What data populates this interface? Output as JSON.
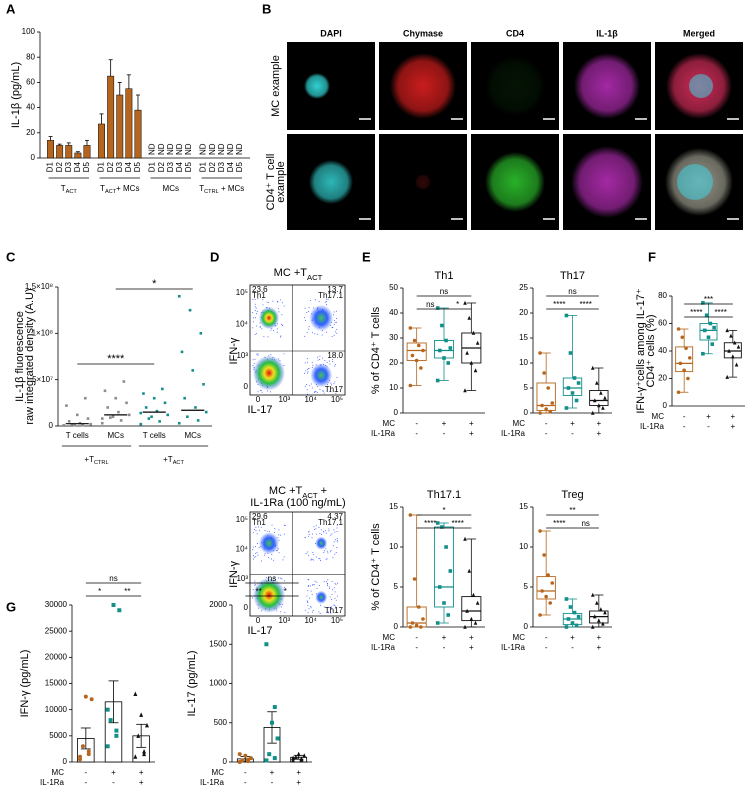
{
  "panel_letters": [
    "A",
    "B",
    "C",
    "D",
    "E",
    "F",
    "G"
  ],
  "microscopy": {
    "columns": [
      "DAPI",
      "Chymase",
      "CD4",
      "IL-1β",
      "Merged"
    ],
    "rows": [
      [
        "MC example"
      ],
      [
        "CD4⁺ T cell",
        "example"
      ]
    ],
    "scale_bar": "3 µm"
  },
  "flow": [
    {
      "title": {
        "text": "MC +T",
        "sub": "ACT"
      },
      "xlabel": "IL-17",
      "ylabel": "IFN-γ",
      "quadrants": [
        {
          "value": "23.6",
          "name": "Th1"
        },
        {
          "value": "13.7",
          "name": "Th17.1"
        },
        {
          "value": "18.0",
          "name": "Th17"
        }
      ],
      "yticks": [
        "10⁵",
        "10⁴",
        "10³",
        "0"
      ],
      "xticks": [
        "0",
        "10³",
        "10⁴",
        "10⁵"
      ]
    },
    {
      "title": {
        "text": "MC +T",
        "sub": "ACT",
        "after": " +"
      },
      "subtitle": "IL-1Ra (100 ng/mL)",
      "xlabel": "IL-17",
      "ylabel": "IFN-γ",
      "quadrants": [
        {
          "value": "29.6",
          "name": "Th1"
        },
        {
          "value": "4.37",
          "name": "Th17.1"
        },
        {
          "name": "Th17"
        }
      ],
      "yticks": [
        "10⁵",
        "10⁴",
        "10³",
        "0"
      ],
      "xticks": [
        "0",
        "10³",
        "10⁴",
        "10⁵"
      ]
    }
  ],
  "chart_data": [
    {
      "type": "bar",
      "ylabel": [
        "IL-1β (pg/mL)"
      ],
      "color": "#b5651d",
      "categories": [
        "D1",
        "D2",
        "D3",
        "D4",
        "D5",
        "D1",
        "D2",
        "D3",
        "D4",
        "D5",
        "D1",
        "D2",
        "D3",
        "D4",
        "D5",
        "D1",
        "D2",
        "D3",
        "D4",
        "D5"
      ],
      "values": [
        14,
        10,
        10,
        4,
        10,
        27,
        65,
        50,
        55,
        38,
        null,
        null,
        null,
        null,
        null,
        null,
        null,
        null,
        null,
        null
      ],
      "errors": [
        3,
        1,
        2,
        1,
        4,
        8,
        13,
        10,
        11,
        12,
        null,
        null,
        null,
        null,
        null,
        null,
        null,
        null,
        null,
        null
      ],
      "value_labels": [
        null,
        null,
        null,
        null,
        null,
        null,
        null,
        null,
        null,
        null,
        "ND",
        "ND",
        "ND",
        "ND",
        "ND",
        "ND",
        "ND",
        "ND",
        "ND",
        "ND"
      ],
      "groups": [
        {
          "text": "T",
          "sub": "ACT"
        },
        {
          "text": "T",
          "sub": "ACT",
          "after": "+ MCs"
        },
        {
          "text": "MCs"
        },
        {
          "text": "T",
          "sub": "CTRL",
          "after": " + MCs"
        }
      ],
      "ylim": [
        0,
        100
      ],
      "yticks": [
        0,
        20,
        40,
        60,
        80,
        100
      ]
    },
    {
      "type": "dot",
      "ylabel": [
        "IL-1β fluorescence",
        "raw integrated density (A.U)"
      ],
      "categories": [
        "T cells",
        "MCs",
        "T cells",
        "MCs"
      ],
      "colors": [
        "#8c8c8c",
        "#8c8c8c",
        "#138f8a",
        "#138f8a"
      ],
      "points": [
        [
          500000,
          1000000,
          1500000,
          2000000,
          3000000,
          5000000,
          8000000,
          12000000,
          22000000,
          30000000,
          1000000,
          700000
        ],
        [
          3000000,
          6000000,
          9000000,
          12000000,
          15000000,
          20000000,
          25000000,
          30000000,
          38000000,
          48000000,
          10000000,
          8000000
        ],
        [
          2000000,
          5000000,
          8000000,
          12000000,
          16000000,
          20000000,
          25000000,
          30000000,
          35000000,
          40000000,
          10000000,
          14000000
        ],
        [
          3000000,
          6000000,
          10000000,
          15000000,
          20000000,
          30000000,
          45000000,
          60000000,
          80000000,
          100000000,
          125000000,
          140000000
        ]
      ],
      "means": [
        2500000,
        12000000,
        15000000,
        17000000
      ],
      "groups": [
        {
          "text": "+T",
          "sub": "CTRL"
        },
        {
          "text": "+T",
          "sub": "ACT"
        }
      ],
      "significance": [
        {
          "from": 0,
          "to": 2,
          "label": "****"
        },
        {
          "from": 1,
          "to": 3,
          "label": "*"
        }
      ],
      "ylim": [
        0,
        150000000
      ],
      "yticks": [
        0,
        {
          "value": 50000000,
          "label": "5×10⁷"
        },
        {
          "value": 100000000,
          "label": "1×10⁸"
        },
        {
          "value": 150000000,
          "label": "1.5×10⁸"
        }
      ]
    },
    {
      "type": "box",
      "title": "Th1",
      "ylabel": [
        "% of CD4⁺ T cells"
      ],
      "ylim": [
        0,
        50
      ],
      "yticks": [
        0,
        10,
        20,
        30,
        40,
        50
      ],
      "conditions": [
        {
          "name": "MC",
          "values": [
            "-",
            "+",
            "+"
          ]
        },
        {
          "name": "IL-1Ra",
          "values": [
            "-",
            "-",
            "+"
          ]
        }
      ],
      "groups": [
        {
          "color": "#b5651d",
          "marker": "circle",
          "min": 11,
          "q1": 21,
          "median": 25,
          "q3": 28,
          "max": 34,
          "points": [
            11,
            18,
            21,
            23,
            25,
            27,
            29,
            34
          ]
        },
        {
          "color": "#138f8a",
          "marker": "square",
          "min": 13,
          "q1": 22,
          "median": 25,
          "q3": 29,
          "max": 42,
          "points": [
            13,
            20,
            22,
            25,
            26,
            29,
            35,
            42
          ]
        },
        {
          "color": "#111111",
          "marker": "triangle",
          "min": 9,
          "q1": 20,
          "median": 26,
          "q3": 32,
          "max": 44,
          "points": [
            9,
            17,
            20,
            24,
            28,
            32,
            38,
            44
          ]
        }
      ],
      "significance": [
        {
          "from": 0,
          "to": 1,
          "label": "ns"
        },
        {
          "from": 0,
          "to": 2,
          "label": "ns"
        },
        {
          "from": 1,
          "to": 2,
          "label": "*"
        }
      ]
    },
    {
      "type": "box",
      "title": "Th17",
      "ylabel": [],
      "ylim": [
        0,
        25
      ],
      "yticks": [
        0,
        5,
        10,
        15,
        20,
        25
      ],
      "conditions": [
        {
          "name": "MC",
          "values": [
            "-",
            "+",
            "+"
          ]
        },
        {
          "name": "IL-1Ra",
          "values": [
            "-",
            "-",
            "+"
          ]
        }
      ],
      "groups": [
        {
          "color": "#b5651d",
          "marker": "circle",
          "min": 0,
          "q1": 0.5,
          "median": 1.5,
          "q3": 6,
          "max": 12,
          "points": [
            0,
            0.3,
            0.8,
            1.5,
            2,
            5,
            8,
            12
          ]
        },
        {
          "color": "#138f8a",
          "marker": "square",
          "min": 1,
          "q1": 3.5,
          "median": 5,
          "q3": 7,
          "max": 19.5,
          "points": [
            1,
            2.5,
            4,
            5,
            6,
            7,
            12,
            19.5
          ]
        },
        {
          "color": "#111111",
          "marker": "triangle",
          "min": 0,
          "q1": 1.5,
          "median": 2.5,
          "q3": 4.5,
          "max": 9,
          "points": [
            0,
            1,
            1.5,
            2.5,
            3,
            4,
            6,
            9
          ]
        }
      ],
      "significance": [
        {
          "from": 0,
          "to": 1,
          "label": "****"
        },
        {
          "from": 0,
          "to": 2,
          "label": "ns"
        },
        {
          "from": 1,
          "to": 2,
          "label": "****"
        }
      ]
    },
    {
      "type": "box",
      "title": "Th17.1",
      "ylabel": [
        "% of CD4⁺ T cells"
      ],
      "ylim": [
        0,
        15
      ],
      "yticks": [
        0,
        5,
        10,
        15
      ],
      "conditions": [
        {
          "name": "MC",
          "values": [
            "-",
            "+",
            "+"
          ]
        },
        {
          "name": "IL-1Ra",
          "values": [
            "-",
            "-",
            "+"
          ]
        }
      ],
      "groups": [
        {
          "color": "#b5651d",
          "marker": "circle",
          "min": 0,
          "q1": 0,
          "median": 0.5,
          "q3": 2.5,
          "max": 14,
          "points": [
            0,
            0,
            0.2,
            0.5,
            1,
            2.5,
            6,
            14
          ]
        },
        {
          "color": "#138f8a",
          "marker": "square",
          "min": 0.5,
          "q1": 2.5,
          "median": 5,
          "q3": 12.5,
          "max": 13,
          "points": [
            0.5,
            1.5,
            3,
            5,
            7,
            10,
            12.5,
            13
          ]
        },
        {
          "color": "#111111",
          "marker": "triangle",
          "min": 0,
          "q1": 0.8,
          "median": 2,
          "q3": 3.8,
          "max": 11,
          "points": [
            0,
            0.5,
            1,
            2,
            3,
            4,
            7,
            11
          ]
        }
      ],
      "significance": [
        {
          "from": 0,
          "to": 1,
          "label": "****"
        },
        {
          "from": 0,
          "to": 2,
          "label": "*"
        },
        {
          "from": 1,
          "to": 2,
          "label": "****"
        }
      ]
    },
    {
      "type": "box",
      "title": "Treg",
      "ylabel": [],
      "ylim": [
        0,
        15
      ],
      "yticks": [
        0,
        5,
        10,
        15
      ],
      "conditions": [
        {
          "name": "MC",
          "values": [
            "-",
            "+",
            "+"
          ]
        },
        {
          "name": "IL-1Ra",
          "values": [
            "-",
            "-",
            "+"
          ]
        }
      ],
      "groups": [
        {
          "color": "#b5651d",
          "marker": "circle",
          "min": 1.5,
          "q1": 3.5,
          "median": 4.5,
          "q3": 6.3,
          "max": 12,
          "points": [
            1.5,
            3,
            3.8,
            4.5,
            5.5,
            6.5,
            9,
            12
          ]
        },
        {
          "color": "#138f8a",
          "marker": "square",
          "min": 0,
          "q1": 0.3,
          "median": 1,
          "q3": 1.7,
          "max": 3.5,
          "points": [
            0,
            0.2,
            0.5,
            1,
            1.3,
            1.8,
            2.5,
            3.5
          ]
        },
        {
          "color": "#111111",
          "marker": "triangle",
          "min": 0,
          "q1": 0.5,
          "median": 1.3,
          "q3": 2,
          "max": 4,
          "points": [
            0,
            0.4,
            0.8,
            1.3,
            1.8,
            2.2,
            3,
            4
          ]
        }
      ],
      "significance": [
        {
          "from": 0,
          "to": 1,
          "label": "****"
        },
        {
          "from": 0,
          "to": 2,
          "label": "**"
        },
        {
          "from": 1,
          "to": 2,
          "label": "ns"
        }
      ]
    },
    {
      "type": "box",
      "ylabel": [
        "IFN-γ⁺cells among IL-17⁺",
        "CD4⁺ cells (%)"
      ],
      "ylim": [
        0,
        80
      ],
      "yticks": [
        0,
        20,
        40,
        60,
        80
      ],
      "conditions": [
        {
          "name": "MC",
          "values": [
            "-",
            "+",
            "+"
          ]
        },
        {
          "name": "IL-1Ra",
          "values": [
            "-",
            "-",
            "+"
          ]
        }
      ],
      "groups": [
        {
          "color": "#b5651d",
          "marker": "circle",
          "min": 10,
          "q1": 25,
          "median": 31,
          "q3": 43,
          "max": 56,
          "points": [
            10,
            20,
            26,
            31,
            35,
            42,
            50,
            56
          ]
        },
        {
          "color": "#138f8a",
          "marker": "square",
          "min": 38,
          "q1": 48,
          "median": 55,
          "q3": 60,
          "max": 75,
          "points": [
            38,
            45,
            50,
            55,
            57,
            60,
            66,
            75
          ]
        },
        {
          "color": "#111111",
          "marker": "triangle",
          "min": 21,
          "q1": 35,
          "median": 40,
          "q3": 46,
          "max": 55,
          "points": [
            21,
            30,
            36,
            40,
            43,
            46,
            51,
            55
          ]
        }
      ],
      "significance": [
        {
          "from": 0,
          "to": 1,
          "label": "****"
        },
        {
          "from": 0,
          "to": 2,
          "label": "***"
        },
        {
          "from": 1,
          "to": 2,
          "label": "****"
        }
      ]
    },
    {
      "type": "dotbar",
      "ylabel": [
        "IFN-γ (pg/mL)"
      ],
      "ylim": [
        0,
        30000
      ],
      "yticks": [
        0,
        5000,
        10000,
        15000,
        20000,
        25000,
        30000
      ],
      "conditions": [
        {
          "name": "MC",
          "values": [
            "-",
            "+",
            "+"
          ]
        },
        {
          "name": "IL-1Ra",
          "values": [
            "-",
            "-",
            "+"
          ]
        }
      ],
      "groups": [
        {
          "color": "#b5651d",
          "marker": "circle",
          "mean": 4500,
          "error": 2000,
          "points": [
            1000,
            2000,
            3000,
            12000,
            12500,
            500,
            1500
          ]
        },
        {
          "color": "#138f8a",
          "marker": "square",
          "mean": 11500,
          "error": 4000,
          "points": [
            3000,
            5000,
            8000,
            29000,
            30000,
            10000,
            6000
          ]
        },
        {
          "color": "#111111",
          "marker": "triangle",
          "mean": 5000,
          "error": 2200,
          "points": [
            1000,
            2000,
            5000,
            7000,
            9000,
            13000,
            1500
          ]
        }
      ],
      "significance": [
        {
          "from": 0,
          "to": 1,
          "label": "*"
        },
        {
          "from": 0,
          "to": 2,
          "label": "ns"
        },
        {
          "from": 1,
          "to": 2,
          "label": "**"
        }
      ]
    },
    {
      "type": "dotbar",
      "ylabel": [
        "IL-17 (pg/mL)"
      ],
      "ylim": [
        0,
        2000
      ],
      "yticks": [
        0,
        500,
        1000,
        1500,
        2000
      ],
      "conditions": [
        {
          "name": "MC",
          "values": [
            "-",
            "+",
            "+"
          ]
        },
        {
          "name": "IL-1Ra",
          "values": [
            "-",
            "-",
            "+"
          ]
        }
      ],
      "groups": [
        {
          "color": "#b5651d",
          "marker": "circle",
          "mean": 40,
          "error": 30,
          "points": [
            0,
            10,
            20,
            50,
            80,
            100,
            30
          ]
        },
        {
          "color": "#138f8a",
          "marker": "square",
          "mean": 440,
          "error": 200,
          "points": [
            20,
            50,
            100,
            300,
            500,
            1500,
            700
          ]
        },
        {
          "color": "#111111",
          "marker": "triangle",
          "mean": 60,
          "error": 25,
          "points": [
            20,
            40,
            60,
            80,
            100,
            50,
            30
          ]
        }
      ],
      "significance": [
        {
          "from": 0,
          "to": 1,
          "label": "**"
        },
        {
          "from": 0,
          "to": 2,
          "label": "ns"
        },
        {
          "from": 1,
          "to": 2,
          "label": "*"
        }
      ]
    }
  ]
}
